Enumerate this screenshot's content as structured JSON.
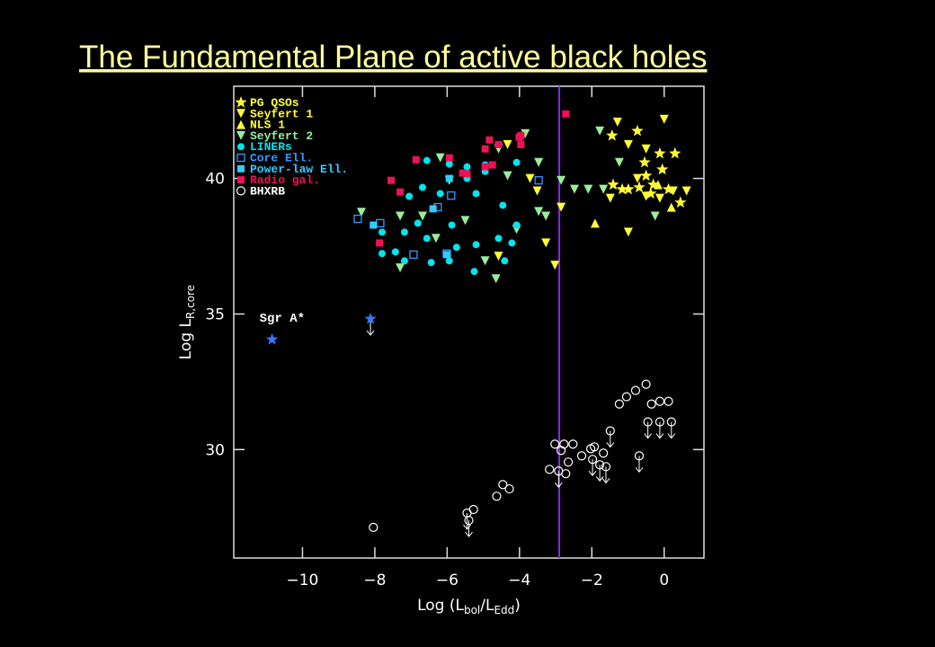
{
  "chart_data": {
    "type": "scatter",
    "title": "The Fundamental Plane of active black holes",
    "xlabel": [
      "Log (L",
      "bol",
      "/L",
      "Edd",
      ")"
    ],
    "ylabel": [
      "Log L",
      "R,core"
    ],
    "xlim": [
      -11.9,
      1.1
    ],
    "ylim": [
      26.0,
      43.4
    ],
    "xticks": [
      {
        "value": -10,
        "label": "−10"
      },
      {
        "value": -8,
        "label": "−8"
      },
      {
        "value": -6,
        "label": "−6"
      },
      {
        "value": -4,
        "label": "−4"
      },
      {
        "value": -2,
        "label": "−2"
      },
      0
    ],
    "yticks": [
      30,
      35,
      40
    ],
    "vline": {
      "x": -2.9,
      "color": "#8a2be2"
    },
    "annotation": "Sgr A*",
    "series": [
      {
        "name": "PG QSOs",
        "color": "#ffff33",
        "marker": "star",
        "x": [
          -1.44,
          -0.74,
          -0.12,
          0.3,
          -0.54,
          -0.05,
          -0.5,
          -1.41,
          -1.16,
          -0.69,
          -0.3,
          0.12,
          -0.99,
          0.45,
          -0.37
        ],
        "values": [
          41.58,
          41.75,
          40.92,
          40.92,
          40.59,
          40.33,
          40.1,
          39.77,
          39.6,
          39.67,
          39.77,
          39.6,
          39.6,
          39.11,
          39.44
        ]
      },
      {
        "name": "Seyfert 1",
        "color": "#ffff33",
        "marker": "tri-down",
        "x": [
          0,
          -1.29,
          -0.99,
          -0.5,
          -0.74,
          0.25,
          0.62,
          -0.12,
          -0.99,
          -3.71,
          -2.85,
          -3.02,
          -4.58,
          -4.33,
          -3.51,
          -3.27,
          -1.49,
          -0.5
        ],
        "values": [
          42.18,
          42.08,
          41.25,
          41.09,
          40.0,
          39.54,
          39.54,
          39.27,
          38.02,
          40.0,
          38.94,
          36.8,
          37.13,
          41.25,
          39.54,
          37.62,
          39.27,
          39.34
        ]
      },
      {
        "name": "NLS 1",
        "color": "#ffff33",
        "marker": "tri-up",
        "x": [
          -1.91,
          0.2,
          -0.17
        ],
        "values": [
          38.35,
          38.94,
          39.77
        ]
      },
      {
        "name": "Seyfert 2",
        "color": "#99ee99",
        "marker": "tri-down",
        "x": [
          -8.37,
          -7.3,
          -6.68,
          -6.19,
          -5.5,
          -4.95,
          -4.65,
          -4.33,
          -4.08,
          -3.84,
          -3.47,
          -2.85,
          -2.48,
          -2.1,
          -1.68,
          -1.78,
          -1.24,
          -0.25,
          -3.27,
          -5.94,
          -6.31,
          -7.3,
          -4.58,
          -3.47
        ],
        "values": [
          38.75,
          38.61,
          38.61,
          40.76,
          38.45,
          36.96,
          36.3,
          40.1,
          38.12,
          41.65,
          40.59,
          39.93,
          39.6,
          39.6,
          39.6,
          41.75,
          40.59,
          38.61,
          38.61,
          39.93,
          37.79,
          36.7,
          41.09,
          38.78
        ]
      },
      {
        "name": "LINERs",
        "color": "#00e5ee",
        "marker": "circle",
        "x": [
          -6.56,
          -5.94,
          -5.45,
          -4.95,
          -7.05,
          -6.68,
          -6.19,
          -5.2,
          -4.46,
          -4.08,
          -4.08,
          -5.87,
          -6.81,
          -7.8,
          -7.18,
          -6.56,
          -5.74,
          -5.2,
          -4.58,
          -4.21,
          -7.43,
          -7.18,
          -6.44,
          -5.94,
          -5.25,
          -4.41,
          -7.8,
          -5.45,
          -4.95
        ],
        "values": [
          40.66,
          40.53,
          40.43,
          40.26,
          39.34,
          39.67,
          39.44,
          39.44,
          39.01,
          38.28,
          40.59,
          38.28,
          38.35,
          38.02,
          38.02,
          37.79,
          37.46,
          37.56,
          37.79,
          37.62,
          37.29,
          36.96,
          36.9,
          36.96,
          36.57,
          36.96,
          37.23,
          40.0,
          40.5
        ]
      },
      {
        "name": "Core Ell.",
        "color": "#3399ff",
        "marker": "square-open",
        "x": [
          -8.47,
          -7.85,
          -6.26,
          -5.89,
          -3.47,
          -6.01,
          -6.93
        ],
        "values": [
          38.51,
          38.35,
          38.94,
          39.37,
          39.93,
          37.23,
          37.19
        ]
      },
      {
        "name": "Power-law Ell.",
        "color": "#33ccff",
        "marker": "square",
        "x": [
          -8.04,
          -6.39,
          -5.94,
          -6.01
        ],
        "values": [
          38.28,
          38.88,
          40.0,
          37.19
        ]
      },
      {
        "name": "Radio gal.",
        "color": "#ee1155",
        "marker": "square",
        "x": [
          -2.72,
          -4.83,
          -4.58,
          -3.96,
          -3.96,
          -4.95,
          -4.95,
          -5.57,
          -5.94,
          -6.86,
          -7.55,
          -7.3,
          -5.45,
          -7.87,
          -4.01,
          -4.75
        ],
        "values": [
          42.38,
          41.42,
          41.25,
          41.58,
          41.25,
          41.09,
          40.43,
          40.2,
          40.76,
          40.69,
          39.93,
          39.5,
          40.17,
          37.62,
          41.52,
          40.5
        ]
      },
      {
        "name": "BHXRB",
        "color": "#ffffff",
        "marker": "circle-open",
        "x": [
          -8.04,
          -5.45,
          -5.27,
          -5.4,
          -4.63,
          -4.46,
          -4.28,
          -3.17,
          -3.02,
          -2.77,
          -2.52,
          -2.85,
          -2.92,
          -2.72,
          -2.28,
          -2.03,
          -1.93,
          -1.98,
          -1.78,
          -1.61,
          -1.68,
          -1.49,
          -1.24,
          -1.04,
          -0.79,
          -0.5,
          -0.35,
          -0.12,
          0.12,
          -0.45,
          -0.12,
          0.2,
          -0.69,
          -2.65
        ],
        "values": [
          27.13,
          27.66,
          27.79,
          27.39,
          28.28,
          28.71,
          28.55,
          29.27,
          30.2,
          30.2,
          30.2,
          29.97,
          29.21,
          29.11,
          29.77,
          30.03,
          30.1,
          29.64,
          29.44,
          29.37,
          29.87,
          30.69,
          31.68,
          31.95,
          32.18,
          32.41,
          31.68,
          31.78,
          31.78,
          31.02,
          31.02,
          31.02,
          29.77,
          29.54
        ],
        "limits": [
          null,
          "down",
          null,
          "down",
          null,
          null,
          null,
          null,
          null,
          null,
          null,
          null,
          "down",
          null,
          null,
          null,
          null,
          "down",
          "down",
          "down",
          null,
          "down",
          null,
          null,
          null,
          null,
          null,
          null,
          null,
          "down",
          "down",
          "down",
          "down",
          null
        ]
      },
      {
        "name": "Sgr A*",
        "color": "#3377ff",
        "marker": "star",
        "legend": false,
        "x": [
          -10.84,
          -8.12
        ],
        "values": [
          34.06,
          34.82
        ],
        "limits": [
          null,
          "down"
        ]
      }
    ]
  }
}
